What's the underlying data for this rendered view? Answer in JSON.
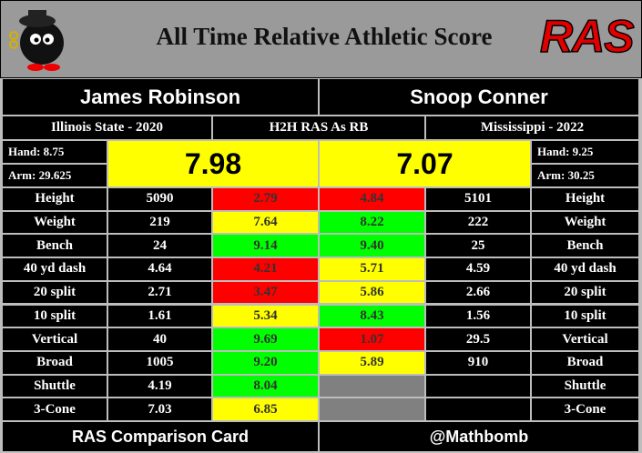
{
  "header": {
    "title": "All Time Relative Athletic Score",
    "logo": "RAS"
  },
  "subtitle": "H2H RAS As RB",
  "players": [
    {
      "name": "James Robinson",
      "school": "Illinois State - 2020",
      "hand": "Hand: 8.75",
      "arm": "Arm: 29.625",
      "ras": "7.98",
      "ras_color": "#ffff00"
    },
    {
      "name": "Snoop Conner",
      "school": "Mississippi - 2022",
      "hand": "Hand: 9.25",
      "arm": "Arm: 30.25",
      "ras": "7.07",
      "ras_color": "#ffff00"
    }
  ],
  "metrics": [
    {
      "label": "Height",
      "values": [
        "5090",
        "5101"
      ],
      "scores": [
        "2.79",
        "4.84"
      ],
      "colors": [
        "#ff0000",
        "#ff0000"
      ]
    },
    {
      "label": "Weight",
      "values": [
        "219",
        "222"
      ],
      "scores": [
        "7.64",
        "8.22"
      ],
      "colors": [
        "#ffff00",
        "#00ff00"
      ]
    },
    {
      "label": "Bench",
      "values": [
        "24",
        "25"
      ],
      "scores": [
        "9.14",
        "9.40"
      ],
      "colors": [
        "#00ff00",
        "#00ff00"
      ]
    },
    {
      "label": "40 yd dash",
      "values": [
        "4.64",
        "4.59"
      ],
      "scores": [
        "4.21",
        "5.71"
      ],
      "colors": [
        "#ff0000",
        "#ffff00"
      ]
    },
    {
      "label": "20 split",
      "values": [
        "2.71",
        "2.66"
      ],
      "scores": [
        "3.47",
        "5.86"
      ],
      "colors": [
        "#ff0000",
        "#ffff00"
      ]
    },
    {
      "label": "10 split",
      "values": [
        "1.61",
        "1.56"
      ],
      "scores": [
        "5.34",
        "8.43"
      ],
      "colors": [
        "#ffff00",
        "#00ff00"
      ]
    },
    {
      "label": "Vertical",
      "values": [
        "40",
        "29.5"
      ],
      "scores": [
        "9.69",
        "1.07"
      ],
      "colors": [
        "#00ff00",
        "#ff0000"
      ]
    },
    {
      "label": "Broad",
      "values": [
        "1005",
        "910"
      ],
      "scores": [
        "9.20",
        "5.89"
      ],
      "colors": [
        "#00ff00",
        "#ffff00"
      ]
    },
    {
      "label": "Shuttle",
      "values": [
        "4.19",
        null
      ],
      "scores": [
        "8.04",
        null
      ],
      "colors": [
        "#00ff00",
        "#808080"
      ]
    },
    {
      "label": "3-Cone",
      "values": [
        "7.03",
        null
      ],
      "scores": [
        "6.85",
        null
      ],
      "colors": [
        "#ffff00",
        "#808080"
      ]
    }
  ],
  "footer": [
    "RAS Comparison Card",
    "@Mathbomb"
  ]
}
